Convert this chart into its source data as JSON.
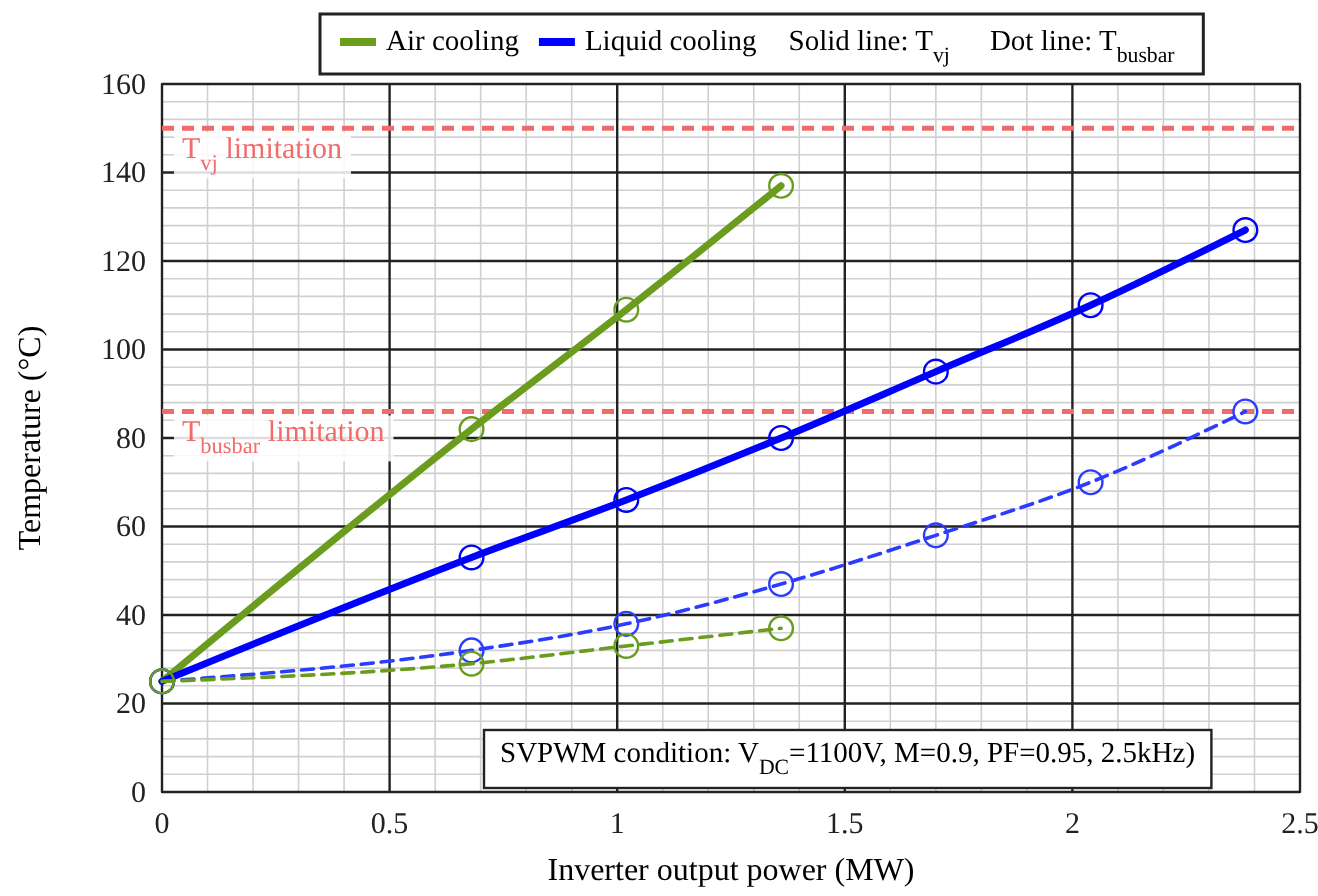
{
  "chart_data": {
    "type": "line",
    "xlabel": "Inverter output power (MW)",
    "ylabel": "Temperature (°C)",
    "xlim": [
      0,
      2.5
    ],
    "xticks": [
      0,
      0.5,
      1,
      1.5,
      2,
      2.5
    ],
    "ylim": [
      0,
      160
    ],
    "yticks": [
      0,
      20,
      40,
      60,
      80,
      100,
      120,
      140,
      160
    ],
    "grid": true,
    "legend": "top",
    "marker": "circle",
    "series": [
      {
        "name": "Air cooling",
        "color": "#6a9c1e",
        "line_style": "solid",
        "x": [
          0,
          0.68,
          1.02,
          1.36
        ],
        "values": [
          25,
          82,
          109,
          137
        ]
      },
      {
        "name": "Liquid cooling",
        "color": "#0000ff",
        "line_style": "solid",
        "x": [
          0,
          0.68,
          1.02,
          1.36,
          1.7,
          2.04,
          2.38
        ],
        "values": [
          25,
          53,
          66,
          80,
          95,
          110,
          127
        ]
      },
      {
        "color": "#2a3cff",
        "line_style": "dashed",
        "x": [
          0,
          0.68,
          1.02,
          1.36,
          1.7,
          2.04,
          2.38
        ],
        "values": [
          25,
          32,
          38,
          47,
          58,
          70,
          86
        ]
      },
      {
        "color": "#6a9c1e",
        "line_style": "dashed",
        "x": [
          0,
          0.68,
          1.02,
          1.36
        ],
        "values": [
          25,
          29,
          33,
          37
        ]
      }
    ],
    "ref_lines": [
      {
        "axis": "y",
        "value": 150,
        "label": "T$_{vj}$ limitation",
        "color": "#f26b6b",
        "line_style": "dashed"
      },
      {
        "axis": "y",
        "value": 86,
        "label": "T$_{busbar}$ limitation",
        "color": "#f26b6b",
        "line_style": "dashed"
      }
    ],
    "annotations": [
      "Solid line: T$_{vj}$",
      "Dot line: T$_{busbar}$",
      "SVPWM condition: V$_{DC}$=1100V, M=0.9, PF=0.95, 2.5kHz)"
    ]
  }
}
